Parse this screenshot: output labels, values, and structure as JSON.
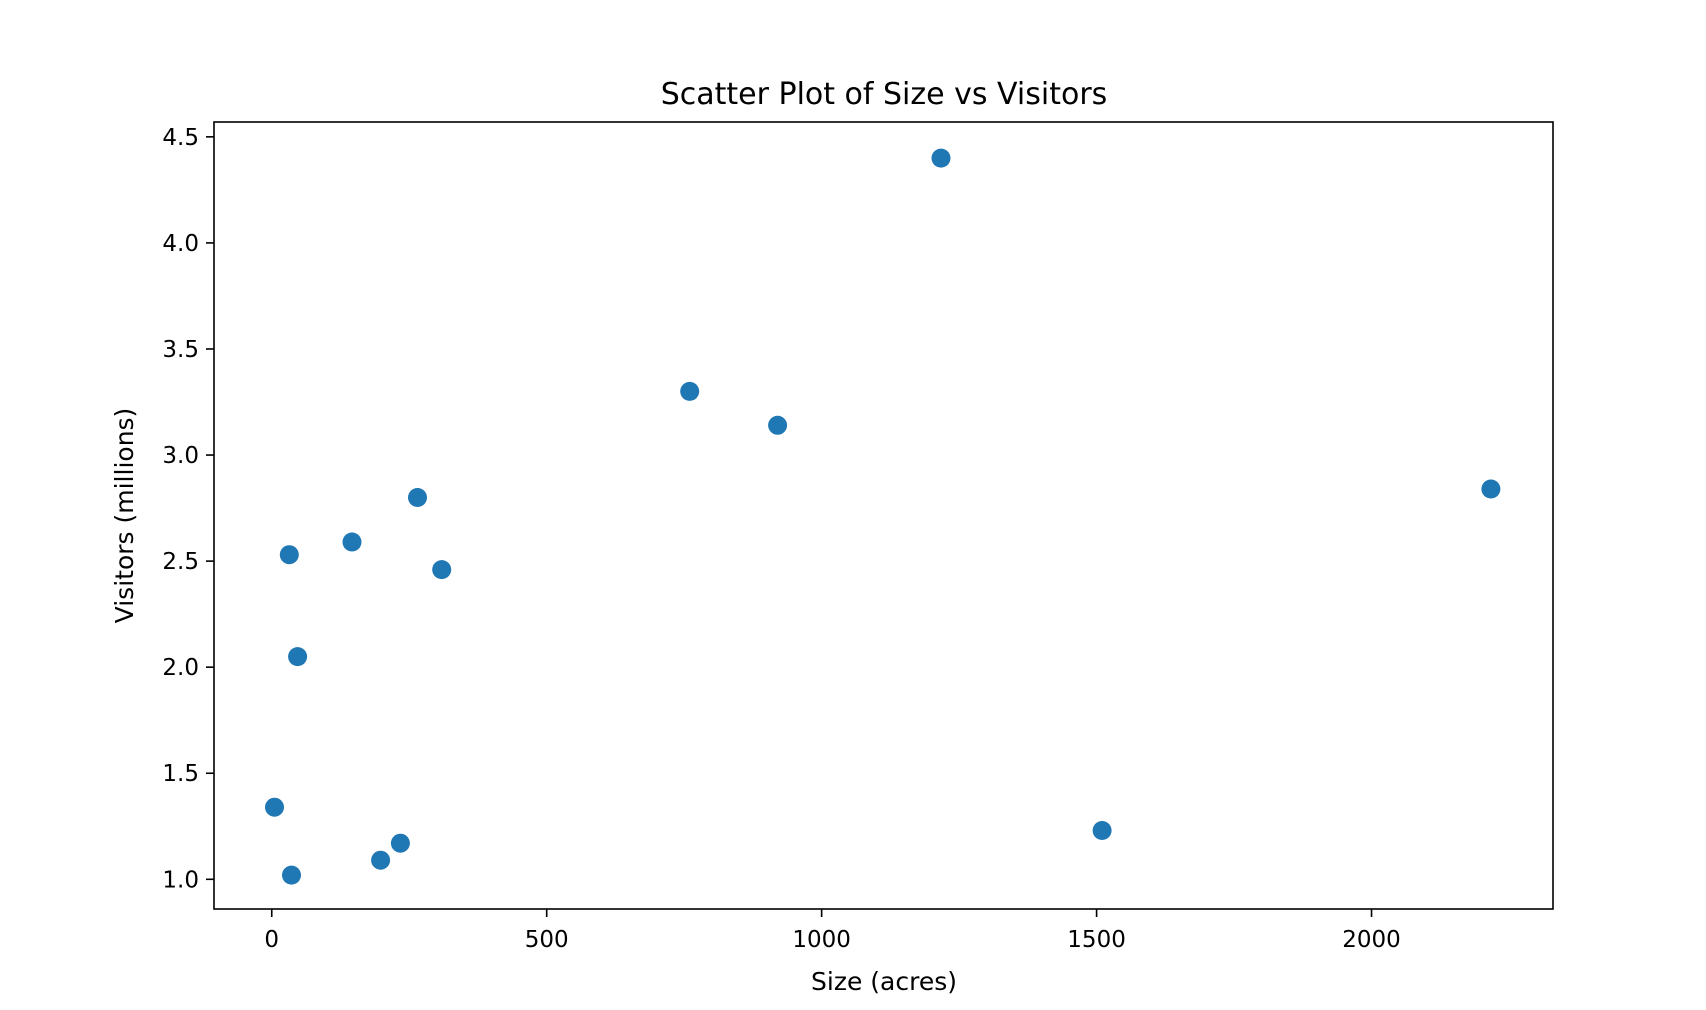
{
  "chart_data": {
    "type": "scatter",
    "title": "Scatter Plot of Size vs Visitors",
    "xlabel": "Size (acres)",
    "ylabel": "Visitors (millions)",
    "xlim": [
      -105,
      2330
    ],
    "ylim": [
      0.86,
      4.57
    ],
    "xticks": [
      0,
      500,
      1000,
      1500,
      2000
    ],
    "xtick_labels": [
      "0",
      "500",
      "1000",
      "1500",
      "2000"
    ],
    "yticks": [
      1.0,
      1.5,
      2.0,
      2.5,
      3.0,
      3.5,
      4.0,
      4.5
    ],
    "ytick_labels": [
      "1.0",
      "1.5",
      "2.0",
      "2.5",
      "3.0",
      "3.5",
      "4.0",
      "4.5"
    ],
    "grid": false,
    "marker_color": "#1f77b4",
    "points": [
      {
        "x": 5,
        "y": 1.34
      },
      {
        "x": 32,
        "y": 2.53
      },
      {
        "x": 36,
        "y": 1.02
      },
      {
        "x": 47,
        "y": 2.05
      },
      {
        "x": 146,
        "y": 2.59
      },
      {
        "x": 198,
        "y": 1.09
      },
      {
        "x": 234,
        "y": 1.17
      },
      {
        "x": 265,
        "y": 2.8
      },
      {
        "x": 309,
        "y": 2.46
      },
      {
        "x": 760,
        "y": 3.3
      },
      {
        "x": 920,
        "y": 3.14
      },
      {
        "x": 1217,
        "y": 4.4
      },
      {
        "x": 1510,
        "y": 1.23
      },
      {
        "x": 2217,
        "y": 2.84
      }
    ]
  }
}
